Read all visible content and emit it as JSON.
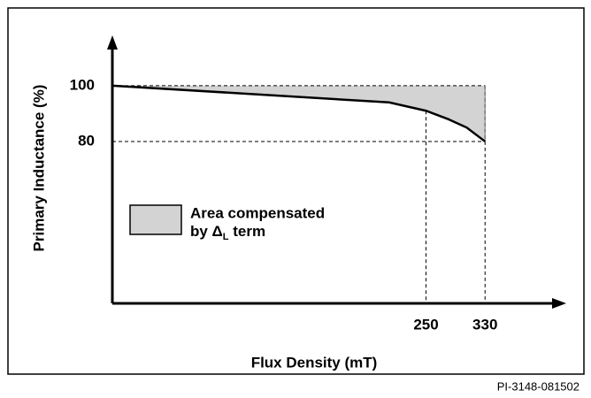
{
  "chart_data": {
    "type": "area",
    "xlabel": "Flux Density (mT)",
    "ylabel": "Primary Inductance (%)",
    "x": [
      -175,
      200,
      250,
      280,
      305,
      330
    ],
    "values": [
      100,
      94,
      91,
      88,
      85,
      80
    ],
    "color": "#d3d3d3",
    "line_color": "#000000",
    "xlim": [
      -175,
      440
    ],
    "ylim": [
      22,
      118
    ],
    "xticks": [
      250,
      330
    ],
    "yticks": [
      100,
      80
    ],
    "legend": {
      "line1": "Area compensated",
      "prefix": "by Δ",
      "subscript": "L",
      "suffix": " term"
    },
    "footnote": "PI-3148-081502"
  }
}
